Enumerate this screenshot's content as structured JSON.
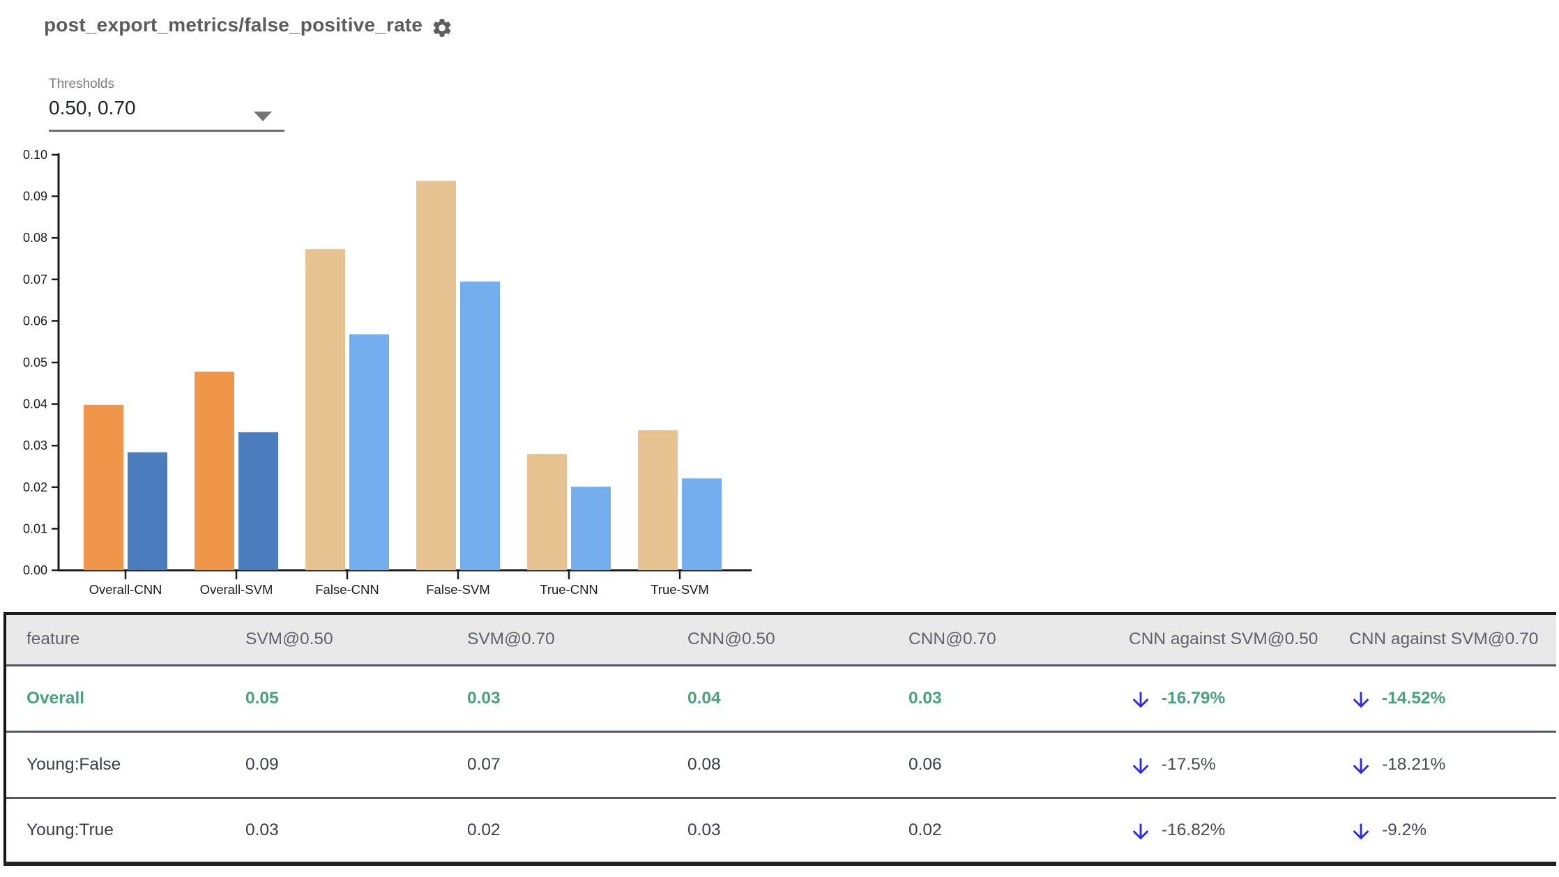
{
  "header": {
    "title": "post_export_metrics/false_positive_rate"
  },
  "thresholds": {
    "label": "Thresholds",
    "value": "0.50, 0.70"
  },
  "colors": {
    "bars_emphasis": [
      "#f0964a",
      "#4b7cbd"
    ],
    "bars_muted": [
      "#e8c392",
      "#75aeef"
    ],
    "highlight_green": "#4aa17e",
    "arrow_blue": "#2929f0",
    "header_bg": "#e9e9e9",
    "title_gray": "#5c5c5c"
  },
  "chart_data": {
    "type": "bar",
    "title": "",
    "xlabel": "",
    "ylabel": "",
    "categories": [
      "Overall-CNN",
      "Overall-SVM",
      "False-CNN",
      "False-SVM",
      "True-CNN",
      "True-SVM"
    ],
    "series": [
      {
        "name": "threshold 0.50",
        "values": [
          0.0398,
          0.0478,
          0.0773,
          0.0937,
          0.028,
          0.0337
        ]
      },
      {
        "name": "threshold 0.70",
        "values": [
          0.0284,
          0.0332,
          0.0568,
          0.0695,
          0.0201,
          0.0221
        ]
      }
    ],
    "emphasis": [
      true,
      true,
      false,
      false,
      false,
      false
    ],
    "ylim": [
      0,
      0.1
    ],
    "ytick_step": 0.01,
    "grid": false,
    "legend": "none"
  },
  "table": {
    "columns": [
      "feature",
      "SVM@0.50",
      "SVM@0.70",
      "CNN@0.50",
      "CNN@0.70",
      "CNN against SVM@0.50",
      "CNN against SVM@0.70"
    ],
    "rows": [
      {
        "feature": "Overall",
        "values": [
          "0.05",
          "0.03",
          "0.04",
          "0.03"
        ],
        "deltas": [
          "-16.79%",
          "-14.52%"
        ],
        "direction": [
          "down",
          "down"
        ]
      },
      {
        "feature": "Young:False",
        "values": [
          "0.09",
          "0.07",
          "0.08",
          "0.06"
        ],
        "deltas": [
          "-17.5%",
          "-18.21%"
        ],
        "direction": [
          "down",
          "down"
        ]
      },
      {
        "feature": "Young:True",
        "values": [
          "0.03",
          "0.02",
          "0.03",
          "0.02"
        ],
        "deltas": [
          "-16.82%",
          "-9.2%"
        ],
        "direction": [
          "down",
          "down"
        ]
      }
    ]
  }
}
